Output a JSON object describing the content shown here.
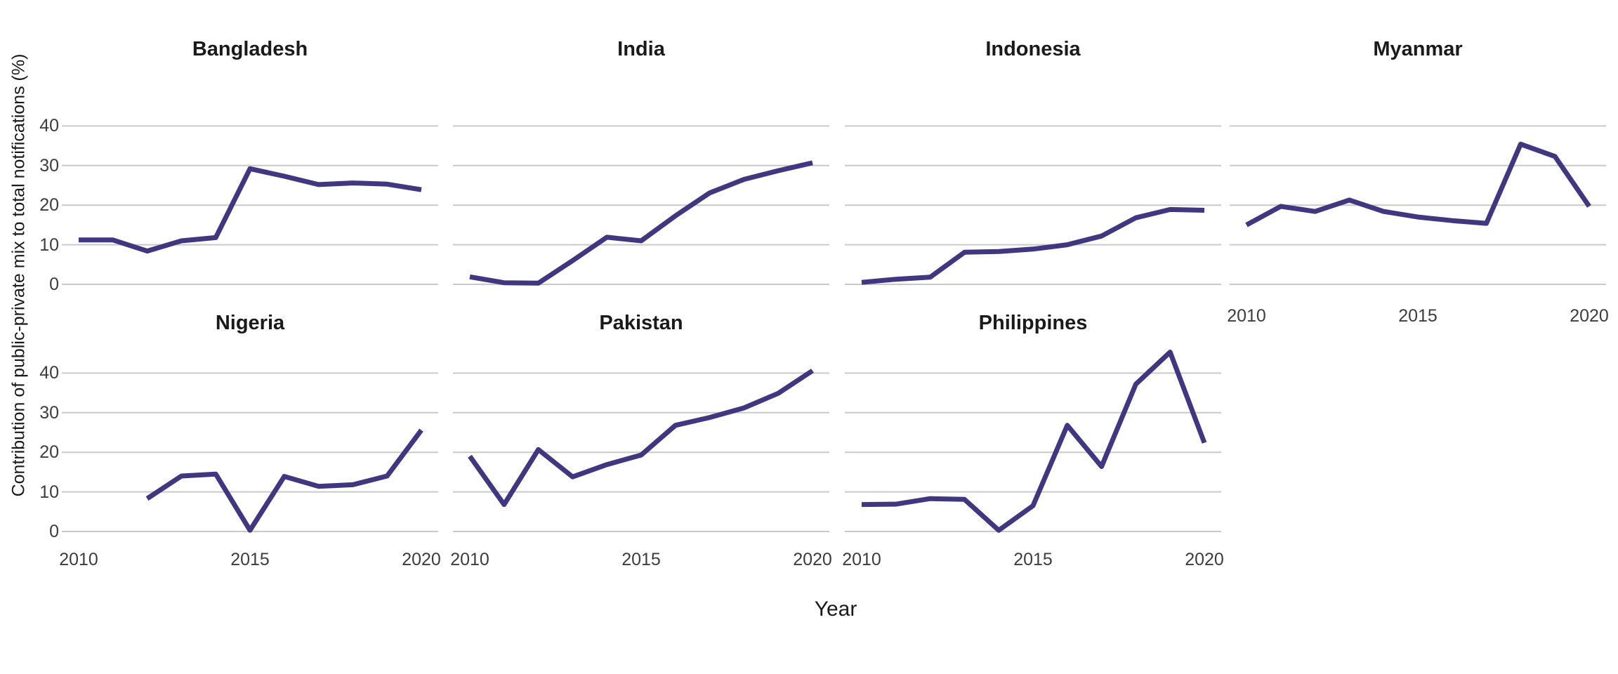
{
  "chart_data": {
    "type": "line",
    "title": "",
    "xlabel": "Year",
    "ylabel": "Contribution of public-private mix to total notifications (%)",
    "x_ticks": [
      2010,
      2015,
      2020
    ],
    "y_ticks": [
      0,
      10,
      20,
      30,
      40
    ],
    "xlim": [
      2009.5,
      2020.5
    ],
    "ylim": [
      -2,
      47.6
    ],
    "grid": "horizontal-major-only",
    "legend": "none",
    "line_color": "#413780",
    "grid_color": "#c9c9c9",
    "tick_label_color": "#3d3d3d",
    "title_color": "#1a1a1a",
    "facets_per_row": 4,
    "series": [
      {
        "name": "Bangladesh",
        "years": [
          2010,
          2011,
          2012,
          2013,
          2014,
          2015,
          2016,
          2017,
          2018,
          2019,
          2020
        ],
        "values": [
          11.2,
          11.2,
          8.4,
          11.0,
          11.8,
          29.2,
          27.3,
          25.2,
          25.6,
          25.3,
          23.9
        ]
      },
      {
        "name": "India",
        "years": [
          2010,
          2011,
          2012,
          2013,
          2014,
          2015,
          2016,
          2017,
          2018,
          2019,
          2020
        ],
        "values": [
          1.9,
          0.4,
          0.3,
          6.0,
          11.9,
          11.0,
          17.3,
          23.1,
          26.5,
          28.7,
          30.7
        ]
      },
      {
        "name": "Indonesia",
        "years": [
          2010,
          2011,
          2012,
          2013,
          2014,
          2015,
          2016,
          2017,
          2018,
          2019,
          2020
        ],
        "values": [
          0.5,
          1.3,
          1.8,
          8.1,
          8.3,
          8.9,
          10.0,
          12.2,
          16.8,
          18.9,
          18.7
        ]
      },
      {
        "name": "Myanmar",
        "years": [
          2010,
          2011,
          2012,
          2013,
          2014,
          2015,
          2016,
          2017,
          2018,
          2019,
          2020
        ],
        "values": [
          15.0,
          19.7,
          18.4,
          21.3,
          18.4,
          17.0,
          16.1,
          15.4,
          35.4,
          32.3,
          19.7
        ]
      },
      {
        "name": "Nigeria",
        "years": [
          2012,
          2013,
          2014,
          2015,
          2016,
          2017,
          2018,
          2019,
          2020
        ],
        "values": [
          8.3,
          14.0,
          14.5,
          0.3,
          13.9,
          11.4,
          11.8,
          14.0,
          25.6
        ]
      },
      {
        "name": "Pakistan",
        "years": [
          2010,
          2011,
          2012,
          2013,
          2014,
          2015,
          2016,
          2017,
          2018,
          2019,
          2020
        ],
        "values": [
          19.0,
          6.8,
          20.7,
          13.8,
          16.9,
          19.3,
          26.8,
          28.8,
          31.2,
          34.9,
          40.6
        ]
      },
      {
        "name": "Philippines",
        "years": [
          2010,
          2011,
          2012,
          2013,
          2014,
          2015,
          2016,
          2017,
          2018,
          2019,
          2020
        ],
        "values": [
          6.8,
          6.9,
          8.3,
          8.1,
          0.3,
          6.5,
          26.8,
          16.4,
          37.2,
          45.3,
          22.4
        ]
      }
    ]
  },
  "x_axis": {
    "title": "Year",
    "tick_labels": [
      "2010",
      "2015",
      "2020"
    ]
  },
  "y_axis": {
    "title": "Contribution of public-private mix to total notifications (%)",
    "tick_labels": [
      "0",
      "10",
      "20",
      "30",
      "40"
    ]
  }
}
